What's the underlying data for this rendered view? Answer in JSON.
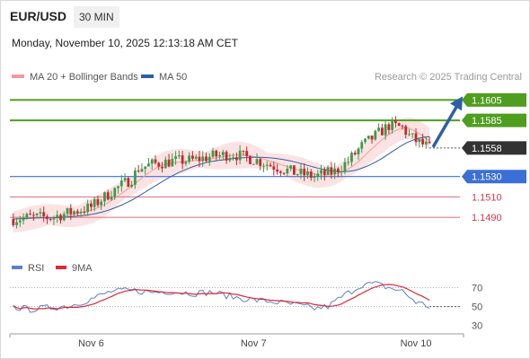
{
  "header": {
    "pair": "EUR/USD",
    "timeframe": "30 MIN",
    "datetime": "Monday, November 10, 2025 12:13:18 AM CET",
    "credit": "Research © 2025 Trading Central"
  },
  "chart_data": [
    {
      "type": "candlestick",
      "legend": [
        {
          "name": "MA 20 + Bollinger Bands",
          "color": "#f29a9a"
        },
        {
          "name": "MA 50",
          "color": "#2e5fa6"
        }
      ],
      "ylim": [
        1.1455,
        1.1615
      ],
      "x_ticks": [
        {
          "label": "Nov 6",
          "x": 12
        },
        {
          "label": "Nov 7",
          "x": 60
        },
        {
          "label": "Nov 10",
          "x": 108
        }
      ],
      "x_range": [
        -12,
        121
      ],
      "price_levels": [
        {
          "label": "1.1605",
          "value": 1.1605,
          "kind": "resistance",
          "color": "#4f9e1f"
        },
        {
          "label": "1.1585",
          "value": 1.1585,
          "kind": "resistance",
          "color": "#4f9e1f"
        },
        {
          "label": "1.1558",
          "value": 1.1558,
          "kind": "last",
          "color": "#333333"
        },
        {
          "label": "1.1530",
          "value": 1.153,
          "kind": "pivot",
          "color": "#3a6fd8"
        },
        {
          "label": "1.1510",
          "value": 1.151,
          "kind": "support",
          "color": "#e07a8a"
        },
        {
          "label": "1.1490",
          "value": 1.149,
          "kind": "support",
          "color": "#e07a8a"
        }
      ],
      "forecast_arrow": {
        "from": [
          112,
          1.1558
        ],
        "to": [
          121,
          1.1605
        ]
      },
      "ohlc_key": {
        "trend": [
          [
            -12,
            1.1488
          ],
          [
            -6,
            1.149
          ],
          [
            0,
            1.149
          ],
          [
            6,
            1.1495
          ],
          [
            12,
            1.15
          ],
          [
            18,
            1.1515
          ],
          [
            24,
            1.1528
          ],
          [
            26,
            1.1538
          ],
          [
            30,
            1.1542
          ],
          [
            36,
            1.1545
          ],
          [
            42,
            1.1546
          ],
          [
            48,
            1.155
          ],
          [
            54,
            1.1552
          ],
          [
            60,
            1.1547
          ],
          [
            66,
            1.154
          ],
          [
            72,
            1.1534
          ],
          [
            78,
            1.153
          ],
          [
            84,
            1.1535
          ],
          [
            88,
            1.1545
          ],
          [
            92,
            1.156
          ],
          [
            96,
            1.157
          ],
          [
            100,
            1.158
          ],
          [
            104,
            1.1578
          ],
          [
            106,
            1.157
          ],
          [
            108,
            1.1565
          ],
          [
            112,
            1.1558
          ]
        ],
        "bb_width": 0.0012
      }
    },
    {
      "type": "line",
      "indicator": "RSI",
      "legend": [
        {
          "name": "RSI",
          "color": "#5b7fd1"
        },
        {
          "name": "9MA",
          "color": "#e0282e"
        }
      ],
      "ylim": [
        25,
        78
      ],
      "y_ticks": [
        70,
        50,
        30
      ],
      "rsi_key": [
        [
          -12,
          50
        ],
        [
          -6,
          47
        ],
        [
          0,
          49
        ],
        [
          6,
          51
        ],
        [
          12,
          58
        ],
        [
          18,
          66
        ],
        [
          24,
          67
        ],
        [
          30,
          65
        ],
        [
          36,
          66
        ],
        [
          42,
          64
        ],
        [
          48,
          65
        ],
        [
          54,
          60
        ],
        [
          60,
          57
        ],
        [
          66,
          55
        ],
        [
          72,
          52
        ],
        [
          78,
          48
        ],
        [
          82,
          50
        ],
        [
          86,
          60
        ],
        [
          92,
          73
        ],
        [
          96,
          74
        ],
        [
          100,
          70
        ],
        [
          104,
          66
        ],
        [
          108,
          55
        ],
        [
          112,
          50
        ]
      ]
    }
  ]
}
